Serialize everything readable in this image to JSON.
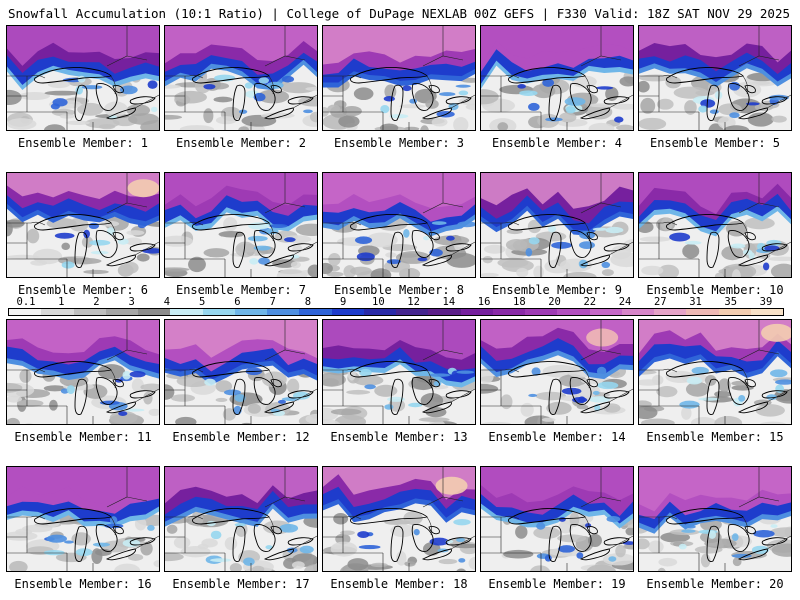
{
  "header": {
    "left": "Snowfall Accumulation (10:1 Ratio) | College of DuPage NEXLAB",
    "right": "00Z GEFS | F330 Valid: 18Z SAT NOV 29 2025"
  },
  "legend": {
    "ticks": [
      "0.1",
      "1",
      "2",
      "3",
      "4",
      "5",
      "6",
      "7",
      "8",
      "9",
      "10",
      "12",
      "14",
      "16",
      "18",
      "20",
      "22",
      "24",
      "27",
      "31",
      "35",
      "39"
    ],
    "colors": [
      "#f2f2f2",
      "#d9d9d9",
      "#bfbfbf",
      "#a6a6a6",
      "#8c8c8c",
      "#c8ecf4",
      "#96d6ee",
      "#6fb6e8",
      "#4e8fe0",
      "#2f64d8",
      "#1e3ccc",
      "#2a2aa8",
      "#45258f",
      "#5d1f8a",
      "#76209e",
      "#8a2aa8",
      "#9e3ab4",
      "#b34fc0",
      "#c667c8",
      "#d785c9",
      "#e6a3c8",
      "#efb9b5",
      "#f3cdb0",
      "#f8e2c8"
    ]
  },
  "members": [
    {
      "label": "Ensemble Member: 1",
      "north_snow_level": 0.55
    },
    {
      "label": "Ensemble Member: 2",
      "north_snow_level": 0.6
    },
    {
      "label": "Ensemble Member: 3",
      "north_snow_level": 0.3
    },
    {
      "label": "Ensemble Member: 4",
      "north_snow_level": 0.5
    },
    {
      "label": "Ensemble Member: 5",
      "north_snow_level": 0.6
    },
    {
      "label": "Ensemble Member: 6",
      "north_snow_level": 0.75
    },
    {
      "label": "Ensemble Member: 7",
      "north_snow_level": 0.6
    },
    {
      "label": "Ensemble Member: 8",
      "north_snow_level": 0.55
    },
    {
      "label": "Ensemble Member: 9",
      "north_snow_level": 0.6
    },
    {
      "label": "Ensemble Member: 10",
      "north_snow_level": 0.6
    },
    {
      "label": "Ensemble Member: 11",
      "north_snow_level": 0.6
    },
    {
      "label": "Ensemble Member: 12",
      "north_snow_level": 0.55
    },
    {
      "label": "Ensemble Member: 13",
      "north_snow_level": 0.45
    },
    {
      "label": "Ensemble Member: 14",
      "north_snow_level": 0.7
    },
    {
      "label": "Ensemble Member: 15",
      "north_snow_level": 0.75
    },
    {
      "label": "Ensemble Member: 16",
      "north_snow_level": 0.55
    },
    {
      "label": "Ensemble Member: 17",
      "north_snow_level": 0.5
    },
    {
      "label": "Ensemble Member: 18",
      "north_snow_level": 0.7
    },
    {
      "label": "Ensemble Member: 19",
      "north_snow_level": 0.55
    },
    {
      "label": "Ensemble Member: 20",
      "north_snow_level": 0.45
    }
  ]
}
